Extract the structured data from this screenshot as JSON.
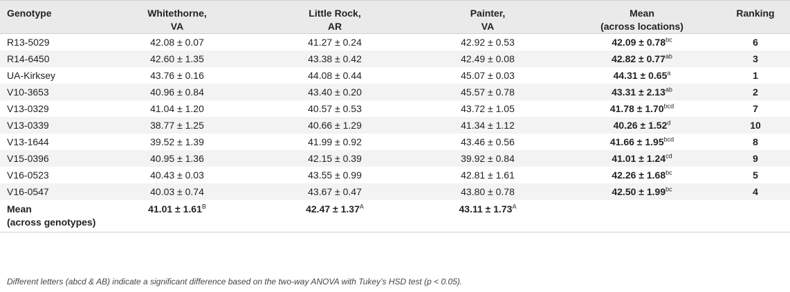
{
  "table": {
    "headers": [
      "Genotype",
      "Whitethorne,\nVA",
      "Little Rock,\nAR",
      "Painter,\nVA",
      "Mean\n(across locations)",
      "Ranking"
    ],
    "header_lines": [
      [
        "Genotype",
        ""
      ],
      [
        "Whitethorne,",
        "VA"
      ],
      [
        "Little Rock,",
        "AR"
      ],
      [
        "Painter,",
        "VA"
      ],
      [
        "Mean",
        "(across locations)"
      ],
      [
        "Ranking",
        ""
      ]
    ],
    "rows": [
      {
        "genotype": "R13-5029",
        "whitethorne": "42.08 ± 0.07",
        "little_rock": "41.27 ± 0.24",
        "painter": "42.92 ± 0.53",
        "mean": "42.09 ± 0.78",
        "mean_sup": "bc",
        "ranking": "6"
      },
      {
        "genotype": "R14-6450",
        "whitethorne": "42.60 ± 1.35",
        "little_rock": "43.38 ± 0.42",
        "painter": "42.49 ± 0.08",
        "mean": "42.82 ± 0.77",
        "mean_sup": "ab",
        "ranking": "3"
      },
      {
        "genotype": "UA-Kirksey",
        "whitethorne": "43.76 ± 0.16",
        "little_rock": "44.08 ± 0.44",
        "painter": "45.07 ± 0.03",
        "mean": "44.31 ± 0.65",
        "mean_sup": "a",
        "ranking": "1"
      },
      {
        "genotype": "V10-3653",
        "whitethorne": "40.96 ± 0.84",
        "little_rock": "43.40 ± 0.20",
        "painter": "45.57 ± 0.78",
        "mean": "43.31 ± 2.13",
        "mean_sup": "ab",
        "ranking": "2"
      },
      {
        "genotype": "V13-0329",
        "whitethorne": "41.04 ± 1.20",
        "little_rock": "40.57 ± 0.53",
        "painter": "43.72 ± 1.05",
        "mean": "41.78 ± 1.70",
        "mean_sup": "bcd",
        "ranking": "7"
      },
      {
        "genotype": "V13-0339",
        "whitethorne": "38.77 ± 1.25",
        "little_rock": "40.66 ± 1.29",
        "painter": "41.34 ± 1.12",
        "mean": "40.26 ± 1.52",
        "mean_sup": "d",
        "ranking": "10"
      },
      {
        "genotype": "V13-1644",
        "whitethorne": "39.52 ± 1.39",
        "little_rock": "41.99 ± 0.92",
        "painter": "43.46 ± 0.56",
        "mean": "41.66 ± 1.95",
        "mean_sup": "bcd",
        "ranking": "8"
      },
      {
        "genotype": "V15-0396",
        "whitethorne": "40.95 ± 1.36",
        "little_rock": "42.15 ± 0.39",
        "painter": "39.92 ± 0.84",
        "mean": "41.01 ± 1.24",
        "mean_sup": "cd",
        "ranking": "9"
      },
      {
        "genotype": "V16-0523",
        "whitethorne": "40.43 ± 0.03",
        "little_rock": "43.55 ± 0.99",
        "painter": "42.81 ± 1.61",
        "mean": "42.26 ± 1.68",
        "mean_sup": "bc",
        "ranking": "5"
      },
      {
        "genotype": "V16-0547",
        "whitethorne": "40.03 ± 0.74",
        "little_rock": "43.67 ± 0.47",
        "painter": "43.80 ± 0.78",
        "mean": "42.50 ± 1.99",
        "mean_sup": "bc",
        "ranking": "4"
      }
    ],
    "mean_row": {
      "label_lines": [
        "Mean",
        "(across genotypes)"
      ],
      "whitethorne": "41.01 ± 1.61",
      "whitethorne_sup": "B",
      "little_rock": "42.47 ± 1.37",
      "little_rock_sup": "A",
      "painter": "43.11 ± 1.73",
      "painter_sup": "A"
    }
  },
  "footnote": "Different letters (abcd & AB) indicate a significant difference based on the two-way ANOVA with Tukey’s HSD test (p < 0.05)."
}
